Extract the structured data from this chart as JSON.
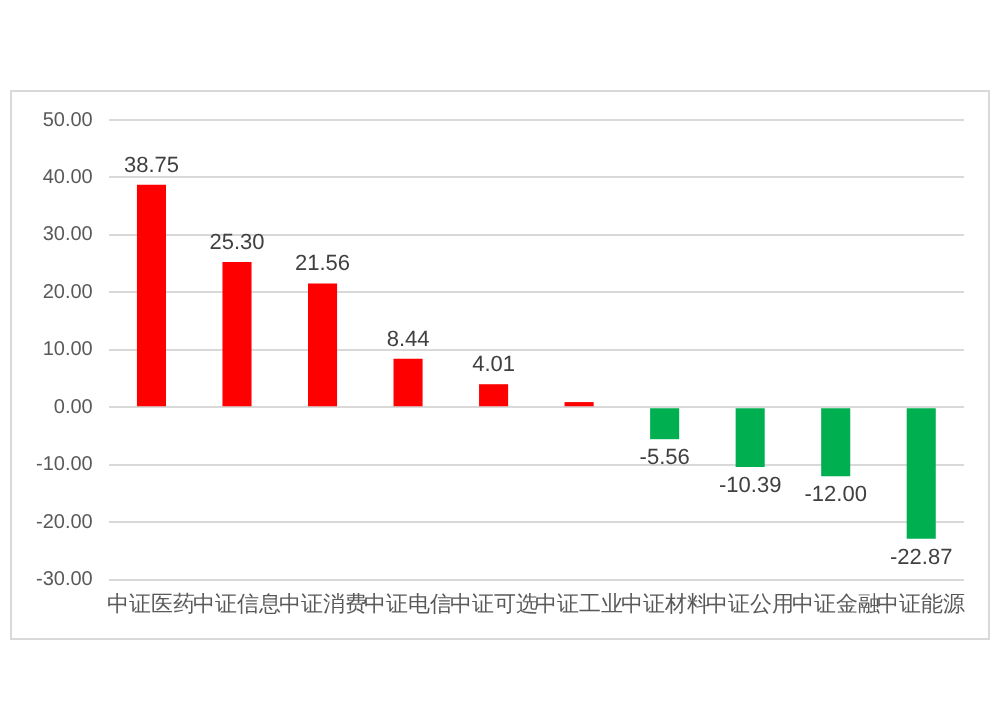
{
  "chart_data": {
    "type": "bar",
    "categories": [
      "中证医药",
      "中证信息",
      "中证消费",
      "中证电信",
      "中证可选",
      "中证工业",
      "中证材料",
      "中证公用",
      "中证金融",
      "中证能源"
    ],
    "values": [
      38.75,
      25.3,
      21.56,
      8.44,
      4.01,
      0.9,
      -5.56,
      -10.39,
      -12.0,
      -22.87
    ],
    "colors": [
      "#ff0000",
      "#ff0000",
      "#ff0000",
      "#ff0000",
      "#ff0000",
      "#ff0000",
      "#00b050",
      "#00b050",
      "#00b050",
      "#00b050"
    ],
    "value_labels": [
      "38.75",
      "25.30",
      "21.56",
      "8.44",
      "4.01",
      null,
      "-5.56",
      "-10.39",
      "-12.00",
      "-22.87"
    ],
    "ylim": [
      -30,
      50
    ],
    "yticks": [
      {
        "value": -30,
        "label": "-30.00"
      },
      {
        "value": -20,
        "label": "-20.00"
      },
      {
        "value": -10,
        "label": "-10.00"
      },
      {
        "value": 0,
        "label": "0.00"
      },
      {
        "value": 10,
        "label": "10.00"
      },
      {
        "value": 20,
        "label": "20.00"
      },
      {
        "value": 30,
        "label": "30.00"
      },
      {
        "value": 40,
        "label": "40.00"
      },
      {
        "value": 50,
        "label": "50.00"
      }
    ],
    "grid": "y"
  }
}
